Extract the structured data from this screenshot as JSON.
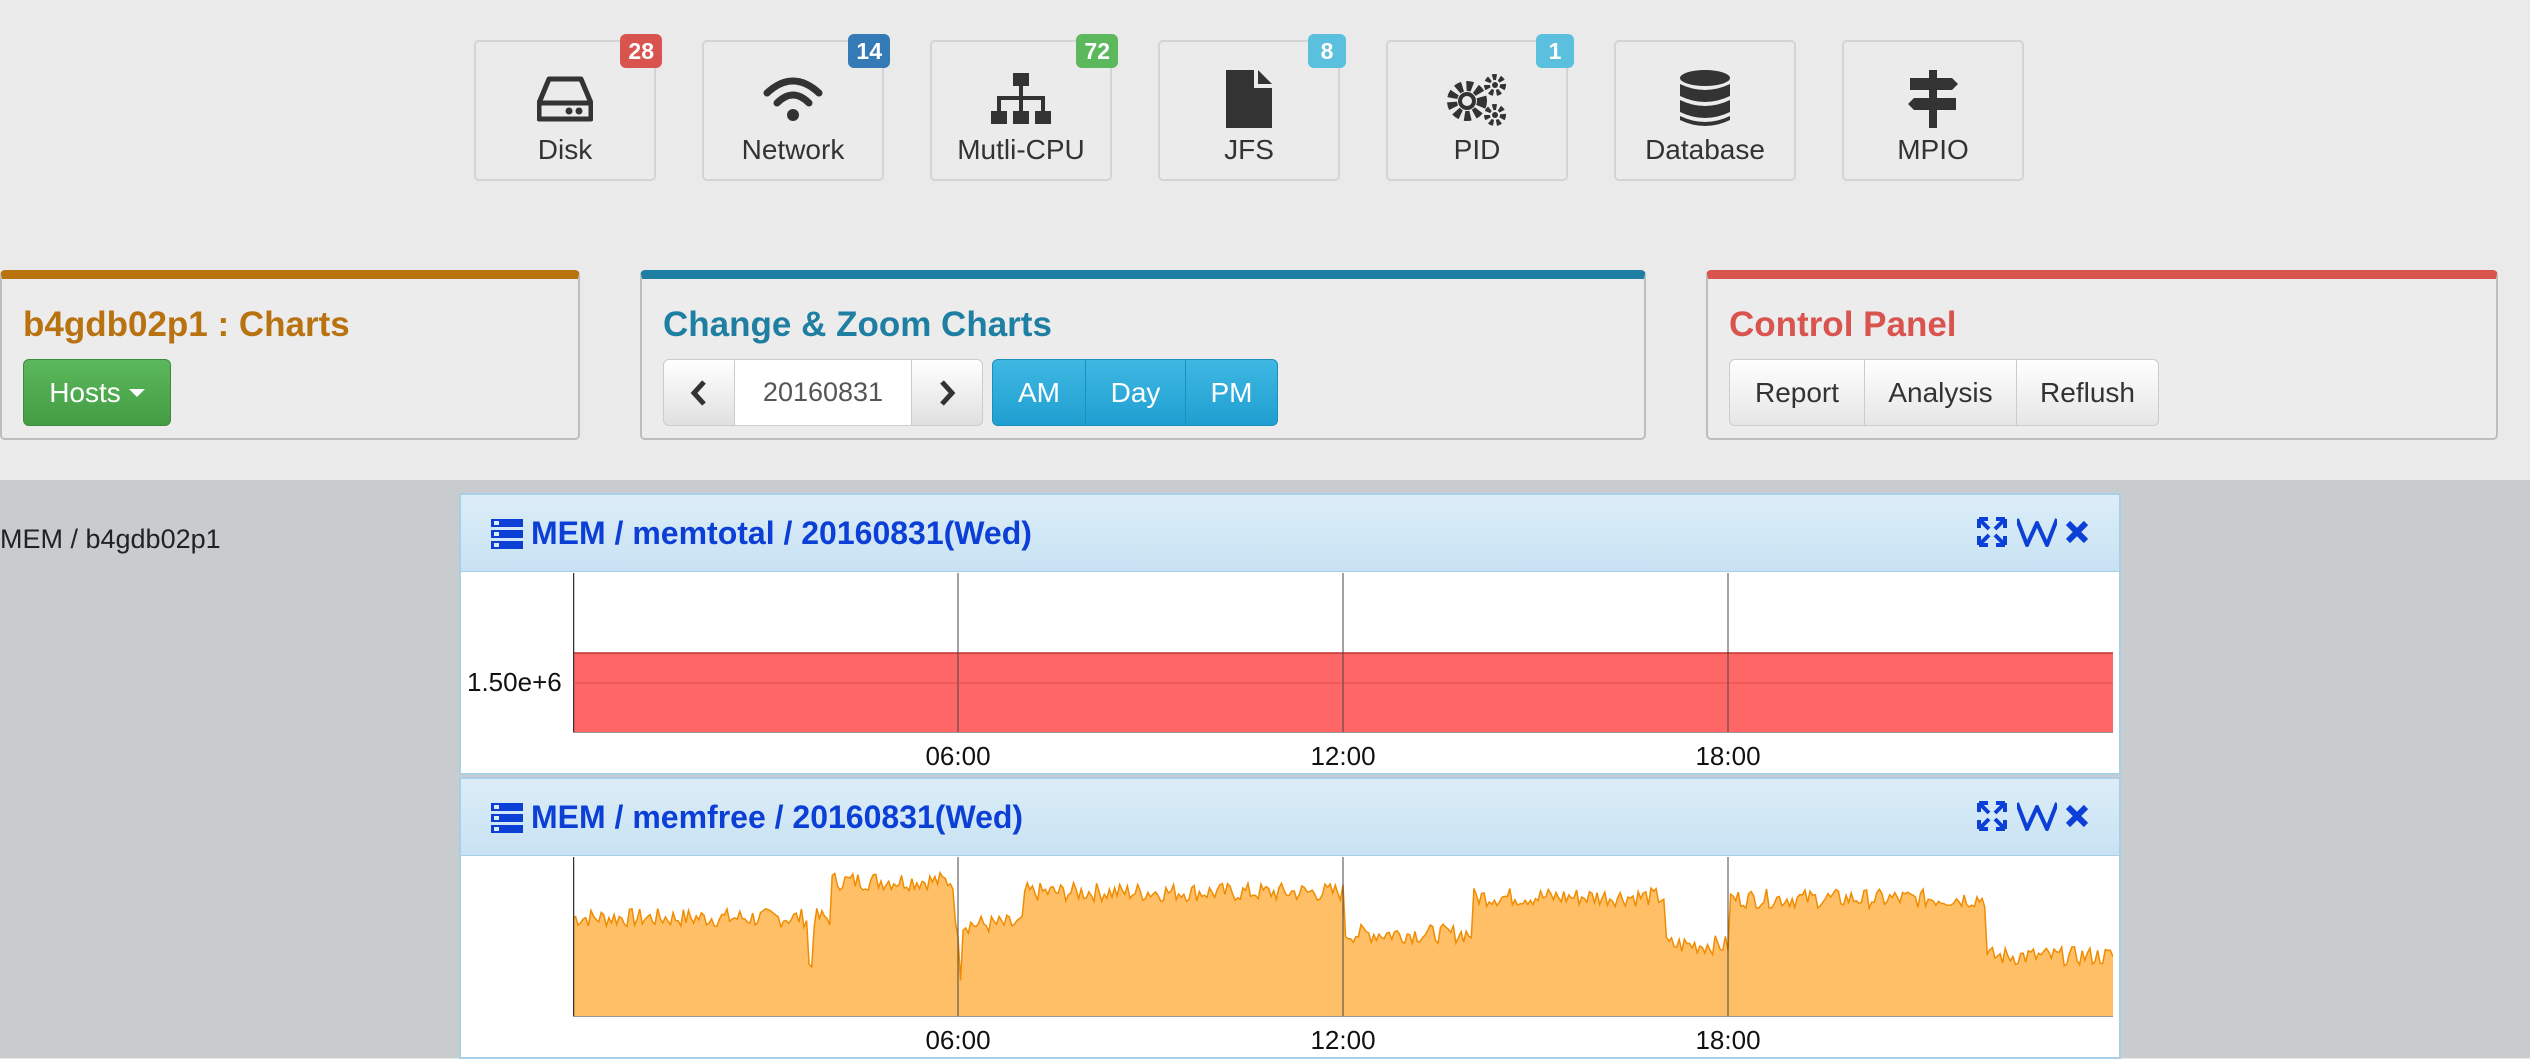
{
  "iconbar": [
    {
      "name": "disk",
      "label": "Disk",
      "icon": "hdd-icon",
      "badge": "28",
      "badge_color": "#d9534f"
    },
    {
      "name": "network",
      "label": "Network",
      "icon": "wifi-icon",
      "badge": "14",
      "badge_color": "#337ab7"
    },
    {
      "name": "multi-cpu",
      "label": "Mutli-CPU",
      "icon": "sitemap-icon",
      "badge": "72",
      "badge_color": "#5cb85c"
    },
    {
      "name": "jfs",
      "label": "JFS",
      "icon": "file-icon",
      "badge": "8",
      "badge_color": "#5bc0de"
    },
    {
      "name": "pid",
      "label": "PID",
      "icon": "gears-icon",
      "badge": "1",
      "badge_color": "#5bc0de"
    },
    {
      "name": "database",
      "label": "Database",
      "icon": "database-icon",
      "badge": "",
      "badge_color": ""
    },
    {
      "name": "mpio",
      "label": "MPIO",
      "icon": "signpost-icon",
      "badge": "",
      "badge_color": ""
    }
  ],
  "charts_panel": {
    "title": "b4gdb02p1 : Charts",
    "hosts_label": "Hosts",
    "accent": "#b8720f"
  },
  "zoom_panel": {
    "title": "Change & Zoom Charts",
    "date": "20160831",
    "am": "AM",
    "day": "Day",
    "pm": "PM",
    "accent": "#1f7fa3"
  },
  "control_panel": {
    "title": "Control Panel",
    "report": "Report",
    "analysis": "Analysis",
    "refresh": "Reflush",
    "accent": "#d9534f"
  },
  "host_label": "MEM / b4gdb02p1",
  "chart_data": [
    {
      "type": "area",
      "title": "MEM / memtotal / 20160831(Wed)",
      "x_ticks": [
        "06:00",
        "12:00",
        "18:00"
      ],
      "y_ticks": [
        "1.50e+6"
      ],
      "color": "#ff6666",
      "note": "constant value across the day"
    },
    {
      "type": "area",
      "title": "MEM / memfree / 20160831(Wed)",
      "x_ticks": [
        "06:00",
        "12:00",
        "18:00"
      ],
      "y_ticks": [],
      "color": "#ffbf66",
      "segments": [
        {
          "from": 0.0,
          "to": 4.0,
          "level": 0.62
        },
        {
          "from": 4.0,
          "to": 6.0,
          "level": 0.85
        },
        {
          "from": 6.0,
          "to": 7.0,
          "level": 0.58
        },
        {
          "from": 7.0,
          "to": 12.0,
          "level": 0.78
        },
        {
          "from": 12.0,
          "to": 14.0,
          "level": 0.52
        },
        {
          "from": 14.0,
          "to": 17.0,
          "level": 0.75
        },
        {
          "from": 17.0,
          "to": 18.0,
          "level": 0.45
        },
        {
          "from": 18.0,
          "to": 22.0,
          "level": 0.74
        },
        {
          "from": 22.0,
          "to": 24.0,
          "level": 0.38
        }
      ]
    }
  ]
}
